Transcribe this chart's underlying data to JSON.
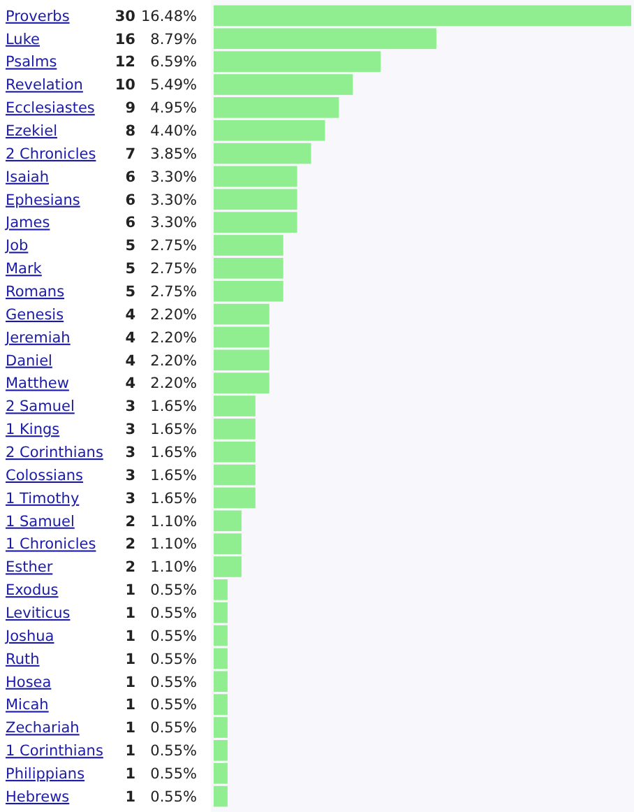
{
  "chart_data": {
    "type": "bar",
    "orientation": "horizontal",
    "color": "#90ee90",
    "data_labels": true,
    "categories": [
      "Proverbs",
      "Luke",
      "Psalms",
      "Revelation",
      "Ecclesiastes",
      "Ezekiel",
      "2 Chronicles",
      "Isaiah",
      "Ephesians",
      "James",
      "Job",
      "Mark",
      "Romans",
      "Genesis",
      "Jeremiah",
      "Daniel",
      "Matthew",
      "2 Samuel",
      "1 Kings",
      "2 Corinthians",
      "Colossians",
      "1 Timothy",
      "1 Samuel",
      "1 Chronicles",
      "Esther",
      "Exodus",
      "Leviticus",
      "Joshua",
      "Ruth",
      "Hosea",
      "Micah",
      "Zechariah",
      "1 Corinthians",
      "Philippians",
      "Hebrews"
    ],
    "values": [
      30,
      16,
      12,
      10,
      9,
      8,
      7,
      6,
      6,
      6,
      5,
      5,
      5,
      4,
      4,
      4,
      4,
      3,
      3,
      3,
      3,
      3,
      2,
      2,
      2,
      1,
      1,
      1,
      1,
      1,
      1,
      1,
      1,
      1,
      1
    ],
    "annotations": [
      "16.48%",
      "8.79%",
      "6.59%",
      "5.49%",
      "4.95%",
      "4.40%",
      "3.85%",
      "3.30%",
      "3.30%",
      "3.30%",
      "2.75%",
      "2.75%",
      "2.75%",
      "2.20%",
      "2.20%",
      "2.20%",
      "2.20%",
      "1.65%",
      "1.65%",
      "1.65%",
      "1.65%",
      "1.65%",
      "1.10%",
      "1.10%",
      "1.10%",
      "0.55%",
      "0.55%",
      "0.55%",
      "0.55%",
      "0.55%",
      "0.55%",
      "0.55%",
      "0.55%",
      "0.55%",
      "0.55%"
    ]
  }
}
